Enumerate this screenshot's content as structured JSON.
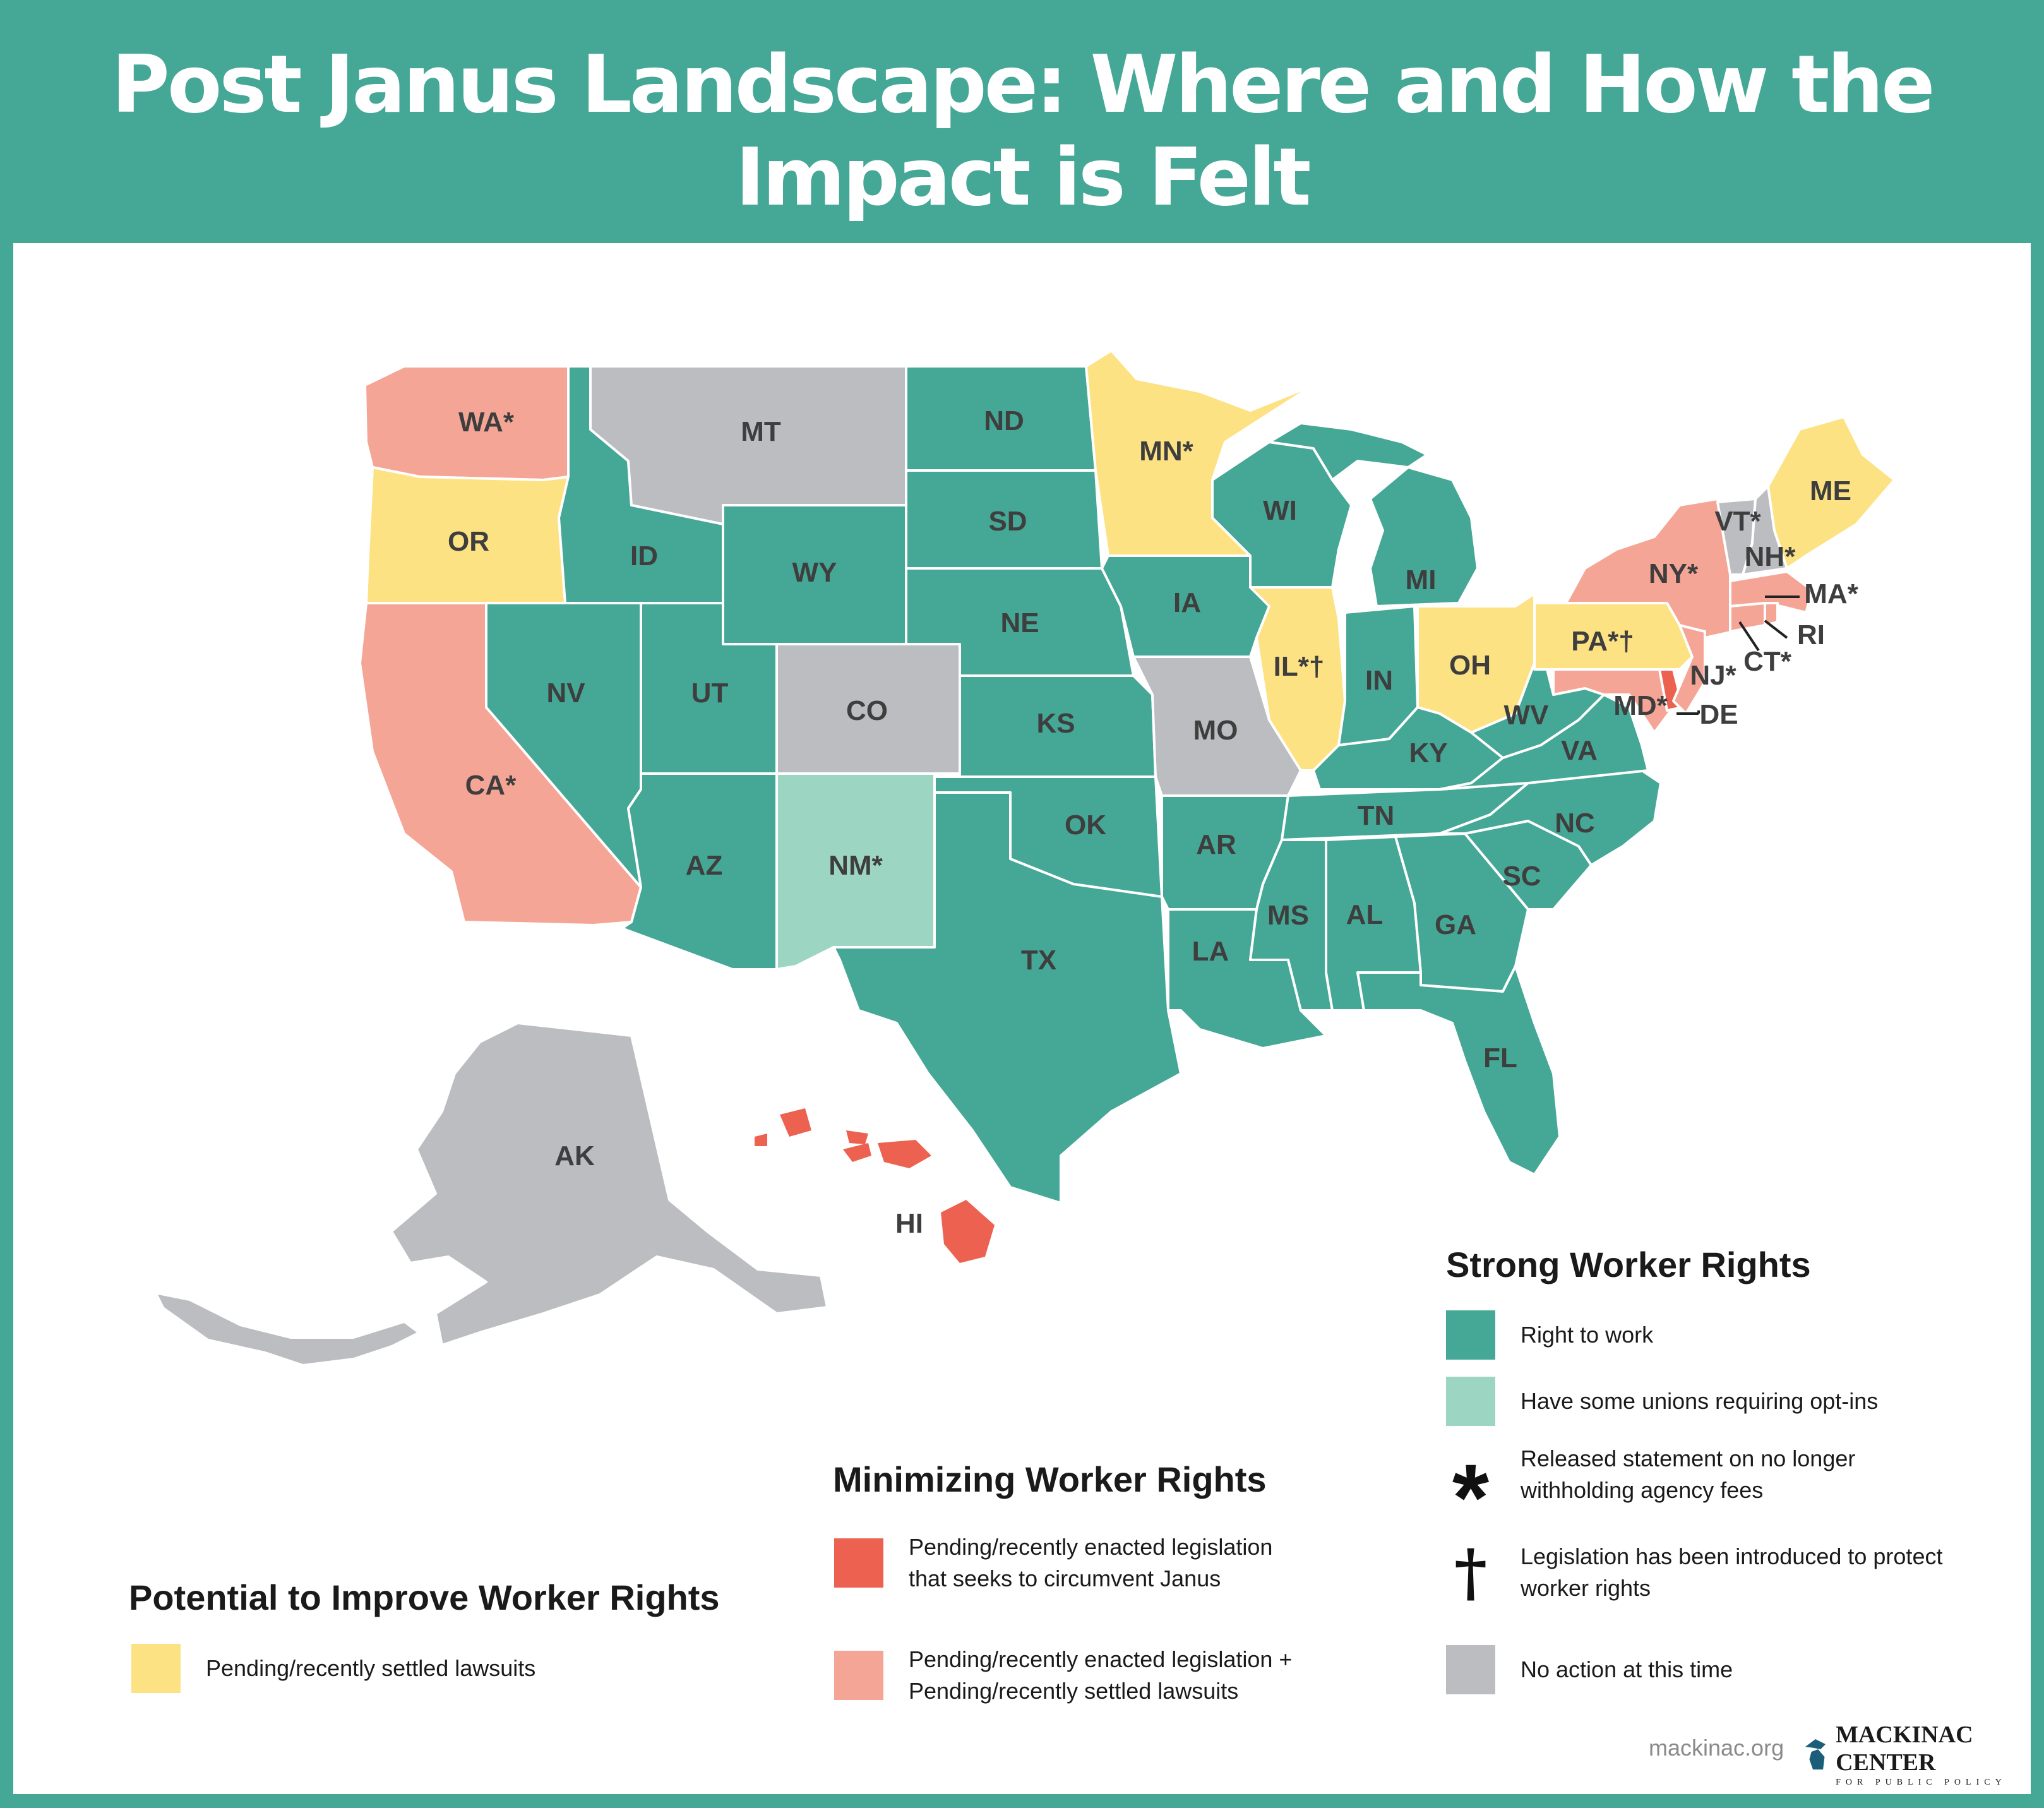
{
  "title": "Post Janus Landscape: Where and How the Impact is Felt",
  "colors": {
    "right_to_work": "#45a795",
    "opt_ins": "#9dd5c3",
    "lawsuits": "#fde283",
    "legislation": "#ed6150",
    "legislation_lawsuits": "#f5a595",
    "no_action": "#bcbdc1"
  },
  "states": {
    "WA": "WA*",
    "OR": "OR",
    "CA": "CA*",
    "ID": "ID",
    "NV": "NV",
    "MT": "MT",
    "WY": "WY",
    "UT": "UT",
    "CO": "CO",
    "AZ": "AZ",
    "NM": "NM*",
    "ND": "ND",
    "SD": "SD",
    "NE": "NE",
    "KS": "KS",
    "OK": "OK",
    "TX": "TX",
    "MN": "MN*",
    "IA": "IA",
    "MO": "MO",
    "AR": "AR",
    "LA": "LA",
    "WI": "WI",
    "IL": "IL*†",
    "MI": "MI",
    "IN": "IN",
    "OH": "OH",
    "KY": "KY",
    "TN": "TN",
    "MS": "MS",
    "AL": "AL",
    "GA": "GA",
    "FL": "FL",
    "SC": "SC",
    "NC": "NC",
    "VA": "VA",
    "WV": "WV",
    "PA": "PA*†",
    "NY": "NY*",
    "VT": "VT*",
    "NH": "NH*",
    "ME": "ME",
    "MA": "MA*",
    "RI": "RI",
    "CT": "CT*",
    "NJ": "NJ*",
    "DE": "DE",
    "MD": "MD*",
    "AK": "AK",
    "HI": "HI"
  },
  "legend": {
    "strong": {
      "title": "Strong Worker Rights",
      "right_to_work": "Right to work",
      "opt_ins": "Have some unions requiring opt-ins",
      "asterisk_symbol": "*",
      "asterisk": "Released statement on no longer withholding agency fees",
      "dagger_symbol": "†",
      "dagger": "Legislation has been introduced to protect worker rights",
      "no_action": "No action at this time"
    },
    "minimizing": {
      "title": "Minimizing Worker Rights",
      "legislation": "Pending/recently enacted legislation that seeks to circumvent Janus",
      "legislation_lawsuits": "Pending/recently enacted legislation + Pending/recently settled lawsuits"
    },
    "potential": {
      "title": "Potential to Improve Worker Rights",
      "lawsuits": "Pending/recently settled lawsuits"
    }
  },
  "footer": {
    "site": "mackinac.org",
    "logo_name": "MACKINAC CENTER",
    "logo_sub": "FOR PUBLIC POLICY"
  }
}
